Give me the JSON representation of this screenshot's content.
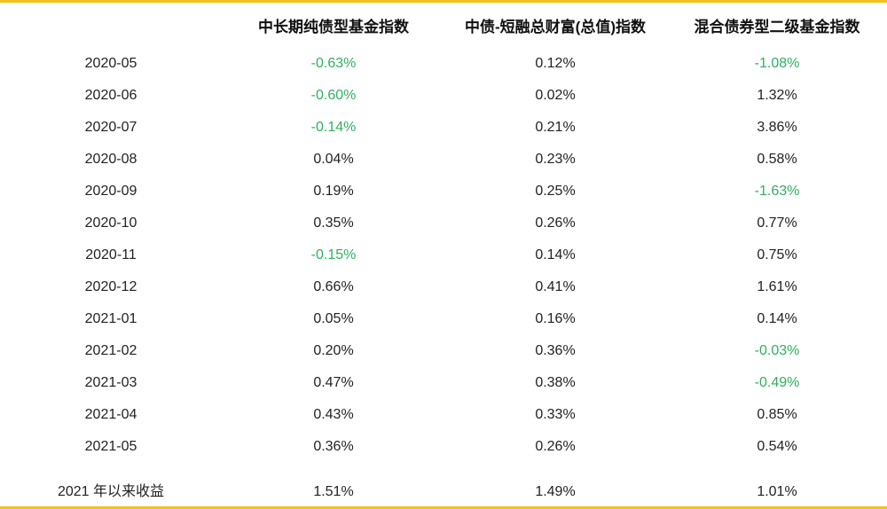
{
  "chart_data": {
    "type": "table",
    "columns": [
      "",
      "中长期纯债型基金指数",
      "中债-短融总财富(总值)指数",
      "混合债券型二级基金指数"
    ],
    "rows": [
      {
        "date": "2020-05",
        "values": [
          "-0.63%",
          "0.12%",
          "-1.08%"
        ]
      },
      {
        "date": "2020-06",
        "values": [
          "-0.60%",
          "0.02%",
          "1.32%"
        ]
      },
      {
        "date": "2020-07",
        "values": [
          "-0.14%",
          "0.21%",
          "3.86%"
        ]
      },
      {
        "date": "2020-08",
        "values": [
          "0.04%",
          "0.23%",
          "0.58%"
        ]
      },
      {
        "date": "2020-09",
        "values": [
          "0.19%",
          "0.25%",
          "-1.63%"
        ]
      },
      {
        "date": "2020-10",
        "values": [
          "0.35%",
          "0.26%",
          "0.77%"
        ]
      },
      {
        "date": "2020-11",
        "values": [
          "-0.15%",
          "0.14%",
          "0.75%"
        ]
      },
      {
        "date": "2020-12",
        "values": [
          "0.66%",
          "0.41%",
          "1.61%"
        ]
      },
      {
        "date": "2021-01",
        "values": [
          "0.05%",
          "0.16%",
          "0.14%"
        ]
      },
      {
        "date": "2021-02",
        "values": [
          "0.20%",
          "0.36%",
          "-0.03%"
        ]
      },
      {
        "date": "2021-03",
        "values": [
          "0.47%",
          "0.38%",
          "-0.49%"
        ]
      },
      {
        "date": "2021-04",
        "values": [
          "0.43%",
          "0.33%",
          "0.85%"
        ]
      },
      {
        "date": "2021-05",
        "values": [
          "0.36%",
          "0.26%",
          "0.54%"
        ]
      }
    ],
    "summary": {
      "label": "2021 年以来收益",
      "values": [
        "1.51%",
        "1.49%",
        "1.01%"
      ]
    }
  },
  "colors": {
    "negative": "#2fb060",
    "positive": "#222222",
    "accent_line": "#f4c21c"
  }
}
